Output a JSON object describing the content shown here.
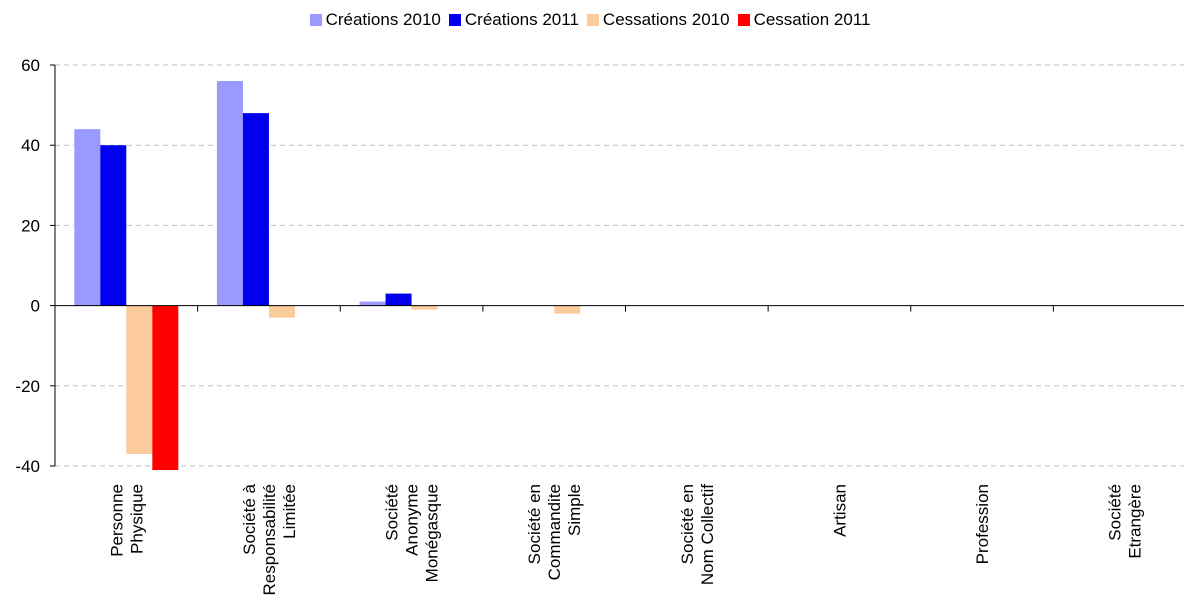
{
  "chart_data": {
    "type": "bar",
    "categories": [
      [
        "Personne",
        "Physique"
      ],
      [
        "Société à",
        "Responsabilité",
        "Limitée"
      ],
      [
        "Société",
        "Anonyme",
        "Monégasque"
      ],
      [
        "Société en",
        "Commandite",
        "Simple"
      ],
      [
        "Société en",
        "Nom Collectif"
      ],
      [
        "Artisan"
      ],
      [
        "Profession"
      ],
      [
        "Société",
        "Etrangère"
      ]
    ],
    "series": [
      {
        "name": "Créations 2010",
        "color": "#9999ff",
        "values": [
          44,
          56,
          1,
          0,
          0,
          0,
          0,
          0
        ]
      },
      {
        "name": "Créations 2011",
        "color": "#0000ee",
        "values": [
          40,
          48,
          3,
          0,
          0,
          0,
          0,
          0
        ]
      },
      {
        "name": "Cessations 2010",
        "color": "#fbcb9b",
        "values": [
          -37,
          -3,
          -1,
          -2,
          0,
          0,
          0,
          0
        ]
      },
      {
        "name": "Cessation 2011",
        "color": "#ff0000",
        "values": [
          -41,
          0,
          0,
          0,
          0,
          0,
          0,
          0
        ]
      }
    ],
    "yticks": [
      "60",
      "40",
      "20",
      "0",
      "-20",
      "-40"
    ],
    "ylim": [
      -40,
      60
    ],
    "grid": true,
    "legend_position": "top-center"
  }
}
